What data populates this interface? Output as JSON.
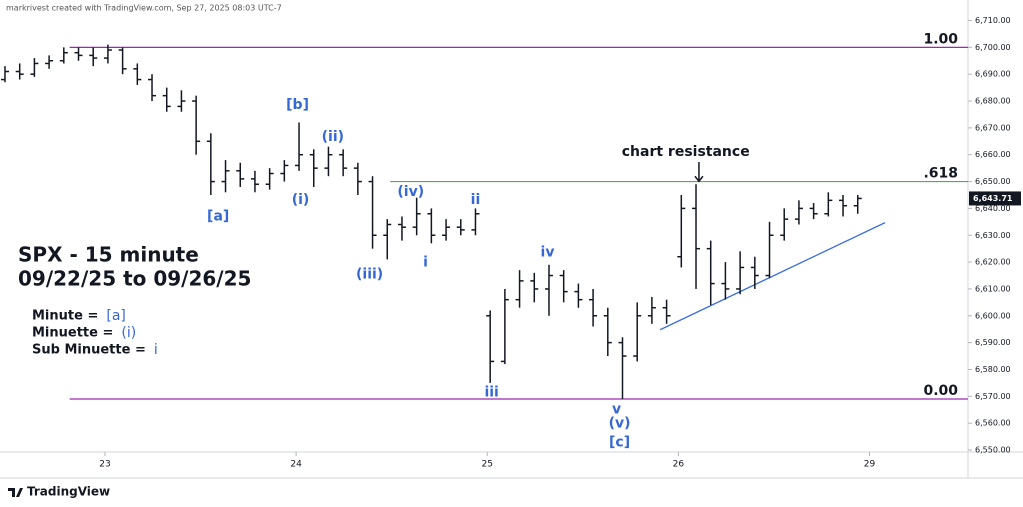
{
  "chart_data": {
    "type": "ohlc",
    "watermark": "markrivest created with TradingView.com, Sep 27, 2025 08:03 UTC-7",
    "title": "SPX - 15 minute",
    "subtitle": "09/22/25 to 09/26/25",
    "legend": [
      {
        "text": "Minute =",
        "symbol": "[a]"
      },
      {
        "text": "Minuette =",
        "symbol": "(i)"
      },
      {
        "text": "Sub Minuette =",
        "symbol": "i"
      }
    ],
    "brand": "TradingView",
    "color": "#131722",
    "label_color": "#3568d4",
    "open": [
      6688,
      6691,
      6690,
      6694,
      6695,
      6698,
      6697,
      6696,
      6699,
      6692,
      6688,
      6682,
      6678,
      6680,
      6665,
      6650,
      6654,
      6651,
      6649,
      6653,
      6656,
      6660,
      6655,
      6660,
      6655,
      6650,
      6630,
      6634,
      6633,
      6638,
      6630,
      6633,
      6632,
      6600,
      6583,
      6606,
      6613,
      6610,
      6615,
      6609,
      6606,
      6600,
      6590,
      6585,
      6600,
      6603,
      6622,
      6640,
      6625,
      6612,
      6610,
      6618,
      6615,
      6630,
      6636,
      6640,
      6638,
      6643,
      6641
    ],
    "high": [
      6693,
      6694,
      6696,
      6697,
      6700,
      6700,
      6700,
      6701,
      6700,
      6694,
      6690,
      6685,
      6684,
      6682,
      6668,
      6658,
      6657,
      6654,
      6655,
      6658,
      6672,
      6662,
      6663,
      6662,
      6657,
      6652,
      6636,
      6637,
      6644,
      6640,
      6636,
      6636,
      6640,
      6602,
      6610,
      6617,
      6616,
      6619,
      6617,
      6612,
      6610,
      6603,
      6592,
      6605,
      6607,
      6606,
      6645,
      6649,
      6628,
      6620,
      6624,
      6622,
      6635,
      6640,
      6643,
      6642,
      6646,
      6645,
      6645
    ],
    "low": [
      6687,
      6688,
      6689,
      6692,
      6694,
      6695,
      6693,
      6694,
      6690,
      6686,
      6680,
      6676,
      6676,
      6660,
      6645,
      6646,
      6648,
      6646,
      6647,
      6650,
      6654,
      6648,
      6652,
      6652,
      6645,
      6625,
      6621,
      6628,
      6630,
      6627,
      6628,
      6630,
      6630,
      6575,
      6582,
      6603,
      6605,
      6600,
      6605,
      6603,
      6596,
      6585,
      6569,
      6583,
      6597,
      6597,
      6618,
      6610,
      6604,
      6606,
      6608,
      6610,
      6614,
      6628,
      6634,
      6636,
      6637,
      6637,
      6638
    ],
    "close": [
      6691,
      6690,
      6694,
      6695,
      6698,
      6697,
      6696,
      6699,
      6692,
      6688,
      6682,
      6678,
      6680,
      6665,
      6650,
      6654,
      6651,
      6649,
      6653,
      6656,
      6660,
      6655,
      6660,
      6655,
      6650,
      6630,
      6634,
      6633,
      6638,
      6630,
      6633,
      6632,
      6638,
      6583,
      6606,
      6613,
      6610,
      6615,
      6609,
      6606,
      6600,
      6590,
      6585,
      6600,
      6603,
      6600,
      6640,
      6625,
      6612,
      6610,
      6618,
      6615,
      6630,
      6636,
      6640,
      6638,
      6643,
      6641,
      6643.71
    ],
    "last_label": "6,643.71",
    "xlim": [
      0,
      65.5
    ],
    "xticks": [
      {
        "value": 6.8,
        "label": "23"
      },
      {
        "value": 19.8,
        "label": "24"
      },
      {
        "value": 32.8,
        "label": "25"
      },
      {
        "value": 45.8,
        "label": "26"
      },
      {
        "value": 58.8,
        "label": "29"
      }
    ],
    "ylim": [
      6550,
      6710
    ],
    "yticks": [
      {
        "value": 6550,
        "label": "6,550.00"
      },
      {
        "value": 6560,
        "label": "6,560.00"
      },
      {
        "value": 6570,
        "label": "6,570.00"
      },
      {
        "value": 6580,
        "label": "6,580.00"
      },
      {
        "value": 6590,
        "label": "6,590.00"
      },
      {
        "value": 6600,
        "label": "6,600.00"
      },
      {
        "value": 6610,
        "label": "6,610.00"
      },
      {
        "value": 6620,
        "label": "6,620.00"
      },
      {
        "value": 6630,
        "label": "6,630.00"
      },
      {
        "value": 6640,
        "label": "6,640.00"
      },
      {
        "value": 6650,
        "label": "6,650.00"
      },
      {
        "value": 6660,
        "label": "6,660.00"
      },
      {
        "value": 6670,
        "label": "6,670.00"
      },
      {
        "value": 6680,
        "label": "6,680.00"
      },
      {
        "value": 6690,
        "label": "6,690.00"
      },
      {
        "value": 6700,
        "label": "6,700.00"
      },
      {
        "value": 6710,
        "label": "6,710.00"
      }
    ],
    "levels": [
      {
        "value": 6700,
        "label": "1.00",
        "color": "#9c27b0",
        "from": 4.4
      },
      {
        "value": 6650,
        "label": ".618",
        "color": "#4caf50",
        "from": 26.2
      },
      {
        "value": 6569,
        "label": "0.00",
        "color": "#9c27b0",
        "from": 4.4
      }
    ],
    "trendline": {
      "x": [
        44.56,
        59.86
      ],
      "y": [
        6594.8,
        6634.7
      ],
      "color": "#3b6fe0"
    },
    "annotations": [
      {
        "text": "[b]",
        "x": 19.9,
        "y": 6678.6
      },
      {
        "text": "(ii)",
        "x": 22.3,
        "y": 6666.6
      },
      {
        "text": "(i)",
        "x": 20.1,
        "y": 6643.2
      },
      {
        "text": "[a]",
        "x": 14.5,
        "y": 6636.9
      },
      {
        "text": "(iv)",
        "x": 27.6,
        "y": 6646.2
      },
      {
        "text": "ii",
        "x": 32.0,
        "y": 6643.2
      },
      {
        "text": "(iii)",
        "x": 24.8,
        "y": 6615.3
      },
      {
        "text": "i",
        "x": 28.6,
        "y": 6619.8
      },
      {
        "text": "iv",
        "x": 36.9,
        "y": 6623.5
      },
      {
        "text": "iii",
        "x": 33.1,
        "y": 6571.4
      },
      {
        "text": "v",
        "x": 41.6,
        "y": 6565.1
      },
      {
        "text": "(v)",
        "x": 41.8,
        "y": 6559.9
      },
      {
        "text": "[c]",
        "x": 41.8,
        "y": 6552.8
      }
    ],
    "callout": {
      "text": "chart resistance",
      "x": 46.3,
      "y": 6661.0,
      "target": 6649
    }
  }
}
